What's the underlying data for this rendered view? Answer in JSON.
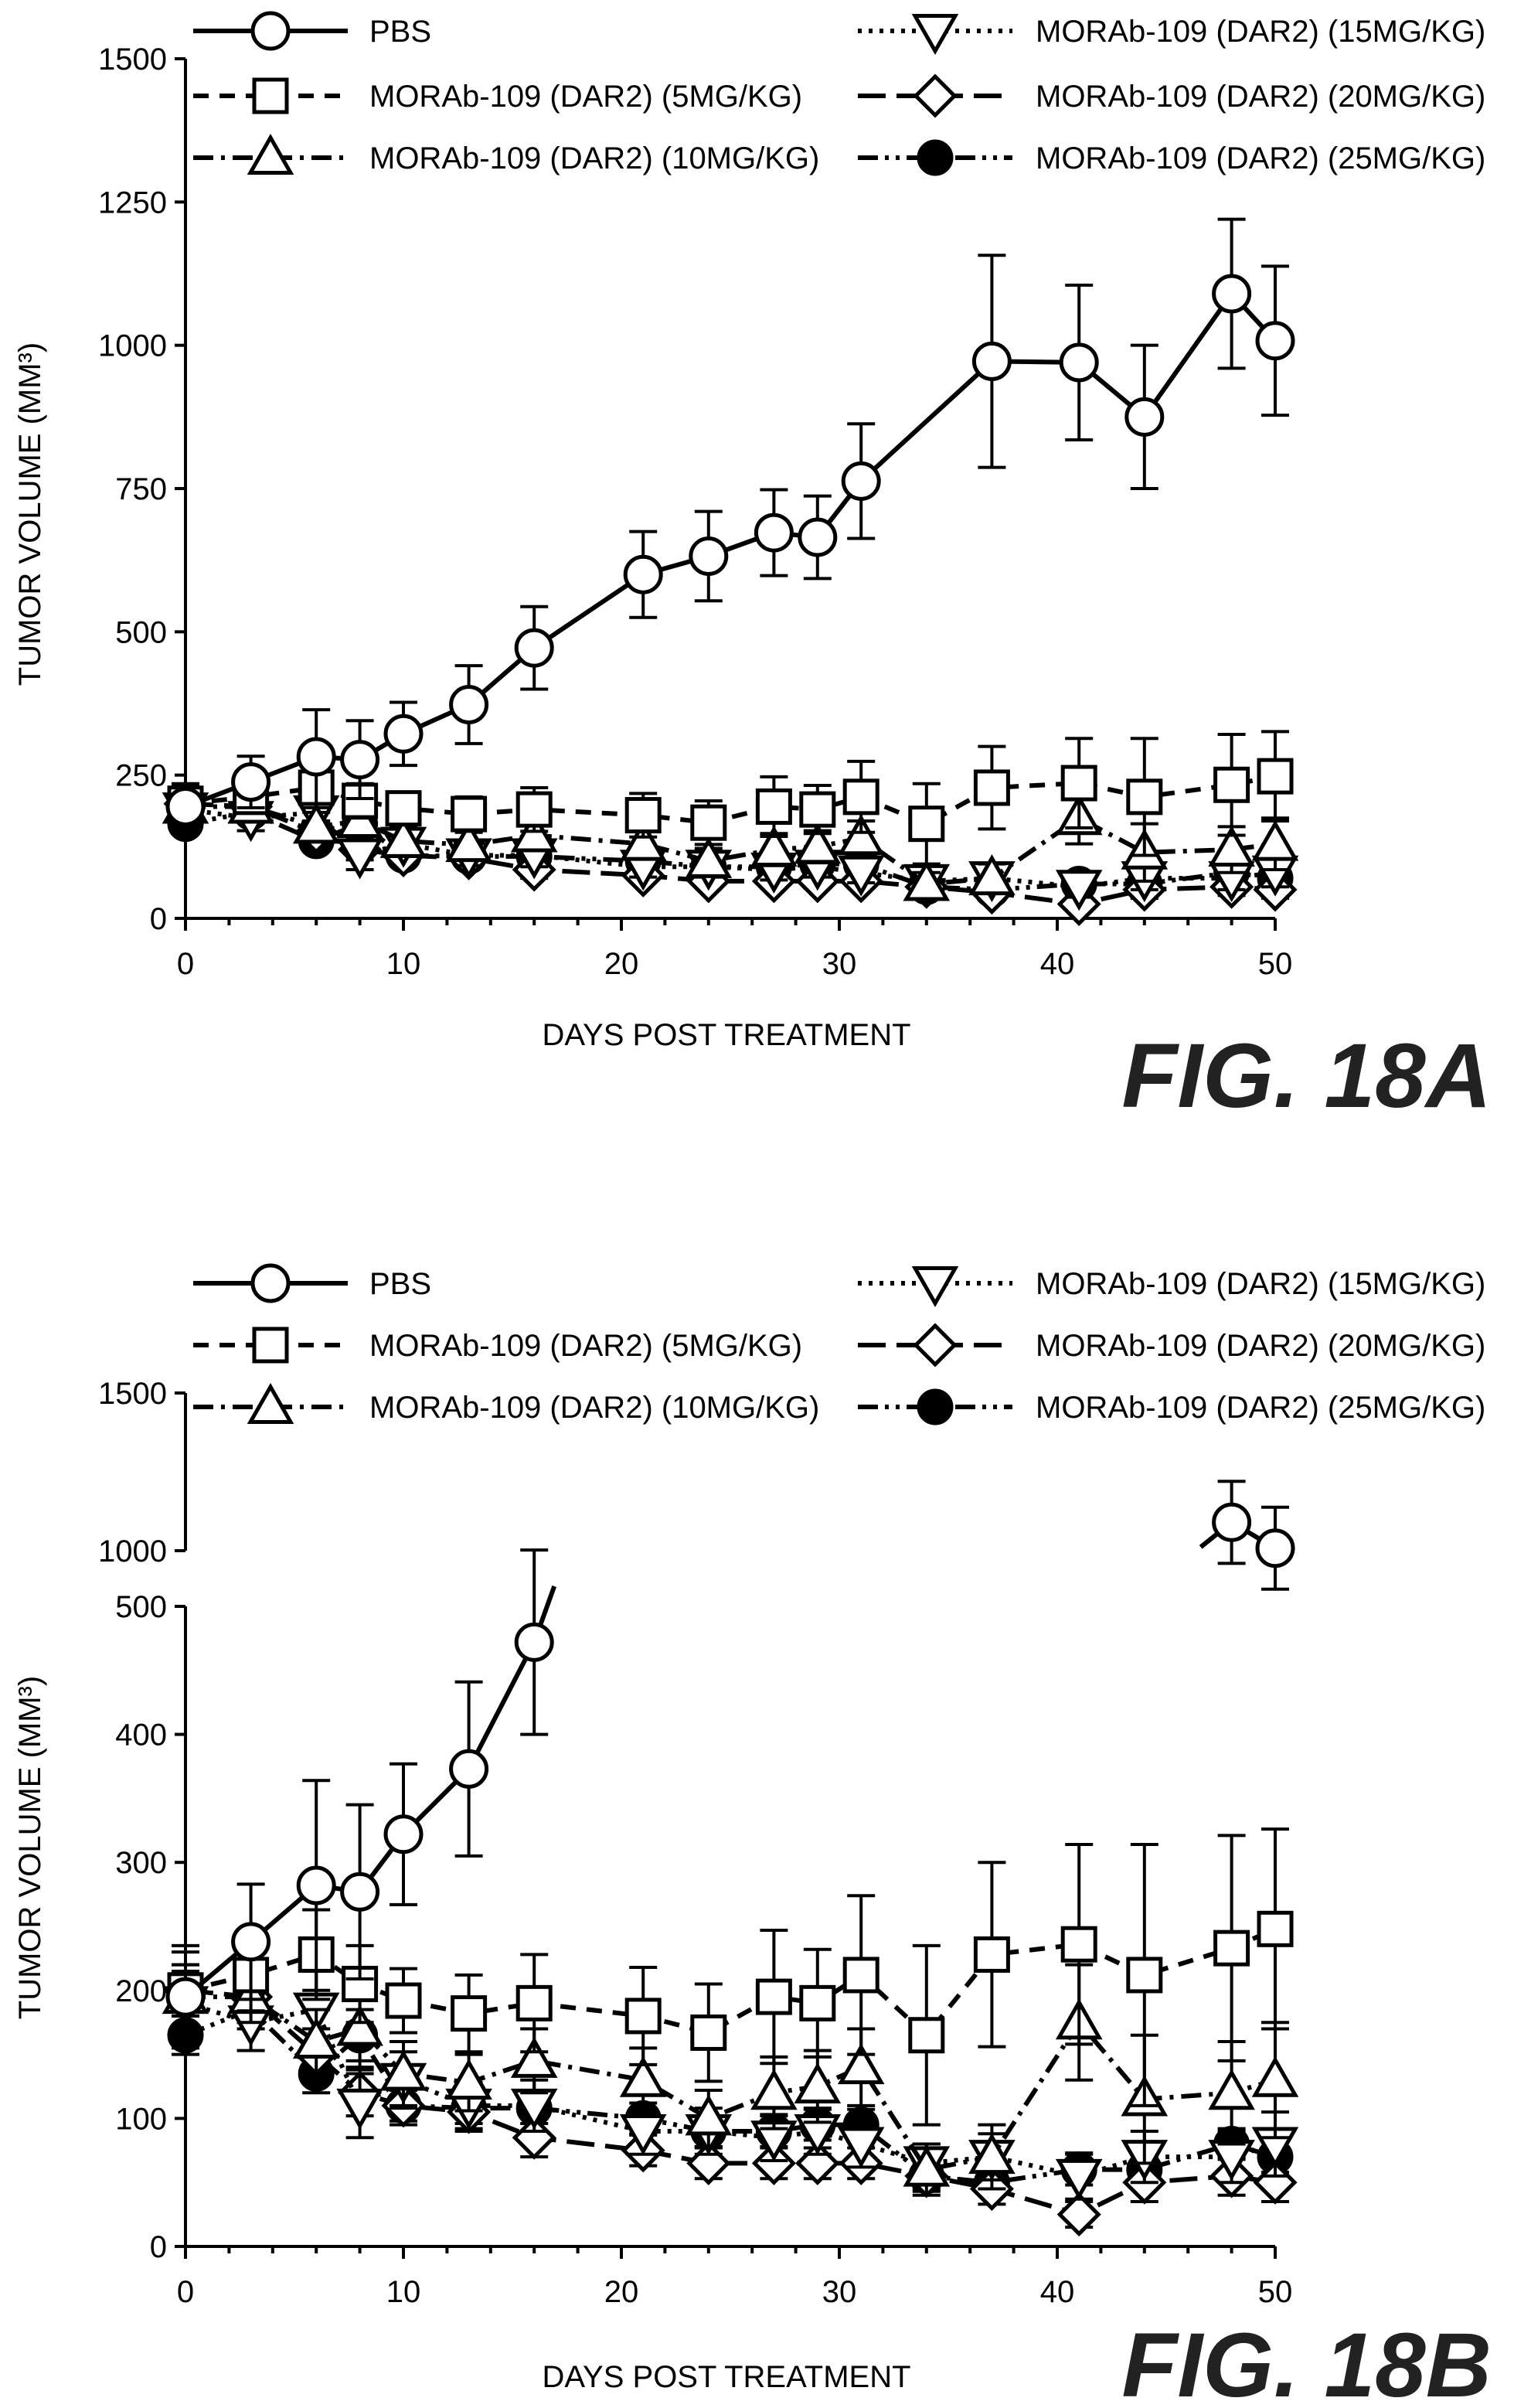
{
  "chart_data": [
    {
      "type": "line",
      "figure_label": "FIG. 18A",
      "xlabel": "DAYS POST TREATMENT",
      "ylabel": "TUMOR VOLUME (MM³)",
      "xlim": [
        0,
        50
      ],
      "xticks": [
        "0",
        "10",
        "20",
        "30",
        "40",
        "50"
      ],
      "ylim": [
        0,
        1500
      ],
      "yticks": [
        "0",
        "250",
        "500",
        "750",
        "1000",
        "1250",
        "1500"
      ],
      "error_bars": true,
      "legend_position": "top",
      "series": [
        {
          "name": "PBS",
          "marker": "circle-open",
          "line": "solid",
          "x": [
            0,
            3,
            6,
            8,
            10,
            13,
            16,
            21,
            24,
            27,
            29,
            31,
            37,
            41,
            44,
            48,
            50
          ],
          "y": [
            195,
            238,
            282,
            277,
            322,
            373,
            472,
            600,
            632,
            673,
            665,
            763,
            972,
            970,
            875,
            1090,
            1008
          ],
          "err": [
            40,
            45,
            82,
            68,
            55,
            68,
            72,
            75,
            78,
            75,
            72,
            100,
            185,
            135,
            125,
            130,
            130
          ]
        },
        {
          "name": "MORAb-109 (DAR2) (5MG/KG)",
          "marker": "square-open",
          "line": "dashed",
          "x": [
            0,
            3,
            6,
            8,
            10,
            13,
            16,
            21,
            24,
            27,
            29,
            31,
            34,
            37,
            41,
            44,
            48,
            50
          ],
          "y": [
            200,
            212,
            228,
            205,
            192,
            182,
            190,
            180,
            167,
            195,
            190,
            212,
            165,
            228,
            236,
            212,
            233,
            248
          ],
          "err": [
            30,
            28,
            35,
            30,
            25,
            30,
            38,
            38,
            38,
            52,
            42,
            62,
            70,
            72,
            78,
            102,
            88,
            78
          ]
        },
        {
          "name": "MORAb-109 (DAR2) (10MG/KG)",
          "marker": "triangle-up-open",
          "line": "dashdot",
          "x": [
            0,
            3,
            6,
            8,
            10,
            13,
            16,
            21,
            24,
            27,
            29,
            31,
            34,
            37,
            41,
            44,
            48,
            50
          ],
          "y": [
            195,
            195,
            160,
            170,
            135,
            128,
            145,
            130,
            100,
            120,
            125,
            140,
            60,
            70,
            175,
            115,
            120,
            130
          ],
          "err": [
            25,
            20,
            25,
            30,
            25,
            22,
            25,
            25,
            22,
            28,
            28,
            30,
            20,
            25,
            45,
            50,
            40,
            45
          ]
        },
        {
          "name": "MORAb-109 (DAR2) (15MG/KG)",
          "marker": "triangle-down-open",
          "line": "dotted",
          "x": [
            0,
            3,
            6,
            8,
            10,
            13,
            16,
            21,
            24,
            27,
            29,
            31,
            34,
            37,
            41,
            44,
            48,
            50
          ],
          "y": [
            190,
            175,
            185,
            110,
            130,
            110,
            110,
            90,
            90,
            85,
            90,
            80,
            65,
            70,
            55,
            70,
            70,
            80
          ],
          "err": [
            25,
            22,
            30,
            25,
            22,
            18,
            20,
            18,
            18,
            18,
            18,
            18,
            15,
            18,
            18,
            20,
            20,
            25
          ]
        },
        {
          "name": "MORAb-109 (DAR2) (20MG/KG)",
          "marker": "diamond-open",
          "line": "longdash",
          "x": [
            0,
            3,
            6,
            8,
            10,
            13,
            16,
            21,
            24,
            27,
            29,
            31,
            34,
            37,
            41,
            44,
            48,
            50
          ],
          "y": [
            200,
            195,
            150,
            120,
            110,
            105,
            85,
            75,
            65,
            65,
            65,
            65,
            55,
            45,
            25,
            50,
            55,
            50
          ],
          "err": [
            20,
            20,
            20,
            18,
            15,
            15,
            15,
            12,
            12,
            12,
            12,
            12,
            12,
            12,
            10,
            15,
            15,
            15
          ]
        },
        {
          "name": "MORAb-109 (DAR2) (25MG/KG)",
          "marker": "circle-filled",
          "line": "dashdotdot",
          "x": [
            0,
            3,
            6,
            8,
            10,
            13,
            16,
            21,
            24,
            27,
            29,
            31,
            34,
            37,
            41,
            44,
            48,
            50
          ],
          "y": [
            165,
            185,
            135,
            165,
            110,
            108,
            108,
            100,
            90,
            90,
            95,
            95,
            55,
            50,
            60,
            60,
            80,
            70
          ],
          "err": [
            15,
            15,
            15,
            20,
            12,
            12,
            12,
            12,
            12,
            12,
            12,
            12,
            10,
            10,
            12,
            12,
            12,
            12
          ]
        }
      ]
    },
    {
      "type": "line",
      "figure_label": "FIG. 18B",
      "xlabel": "DAYS POST TREATMENT",
      "ylabel": "TUMOR VOLUME (MM³)",
      "xlim": [
        0,
        50
      ],
      "xticks": [
        "0",
        "10",
        "20",
        "30",
        "40",
        "50"
      ],
      "ylim_lower": [
        0,
        500
      ],
      "yticks_lower": [
        "0",
        "100",
        "200",
        "300",
        "400",
        "500"
      ],
      "ylim_upper": [
        1000,
        1500
      ],
      "yticks_upper": [
        "1000",
        "1500"
      ],
      "broken_y_axis": true,
      "error_bars": true,
      "legend_position": "top",
      "series": [
        {
          "name": "PBS",
          "marker": "circle-open",
          "line": "solid",
          "x": [
            0,
            3,
            6,
            8,
            10,
            13,
            16,
            48,
            50
          ],
          "y": [
            195,
            238,
            282,
            277,
            322,
            373,
            472,
            1090,
            1008
          ],
          "err": [
            40,
            45,
            82,
            68,
            55,
            68,
            72,
            130,
            130
          ]
        },
        {
          "name": "MORAb-109 (DAR2) (5MG/KG)",
          "marker": "square-open",
          "line": "dashed",
          "x": [
            0,
            3,
            6,
            8,
            10,
            13,
            16,
            21,
            24,
            27,
            29,
            31,
            34,
            37,
            41,
            44,
            48,
            50
          ],
          "y": [
            200,
            212,
            228,
            205,
            192,
            182,
            190,
            180,
            167,
            195,
            190,
            212,
            165,
            228,
            236,
            212,
            233,
            248
          ],
          "err": [
            30,
            28,
            35,
            30,
            25,
            30,
            38,
            38,
            38,
            52,
            42,
            62,
            70,
            72,
            78,
            102,
            88,
            78
          ]
        },
        {
          "name": "MORAb-109 (DAR2) (10MG/KG)",
          "marker": "triangle-up-open",
          "line": "dashdot",
          "x": [
            0,
            3,
            6,
            8,
            10,
            13,
            16,
            21,
            24,
            27,
            29,
            31,
            34,
            37,
            41,
            44,
            48,
            50
          ],
          "y": [
            195,
            195,
            160,
            170,
            135,
            128,
            145,
            130,
            100,
            120,
            125,
            140,
            60,
            70,
            175,
            115,
            120,
            130
          ],
          "err": [
            25,
            20,
            25,
            30,
            25,
            22,
            25,
            25,
            22,
            28,
            28,
            30,
            20,
            25,
            45,
            50,
            40,
            45
          ]
        },
        {
          "name": "MORAb-109 (DAR2) (15MG/KG)",
          "marker": "triangle-down-open",
          "line": "dotted",
          "x": [
            0,
            3,
            6,
            8,
            10,
            13,
            16,
            21,
            24,
            27,
            29,
            31,
            34,
            37,
            41,
            44,
            48,
            50
          ],
          "y": [
            190,
            175,
            185,
            110,
            130,
            110,
            110,
            90,
            90,
            85,
            90,
            80,
            65,
            70,
            55,
            70,
            70,
            80
          ],
          "err": [
            25,
            22,
            30,
            25,
            22,
            18,
            20,
            18,
            18,
            18,
            18,
            18,
            15,
            18,
            18,
            20,
            20,
            25
          ]
        },
        {
          "name": "MORAb-109 (DAR2) (20MG/KG)",
          "marker": "diamond-open",
          "line": "longdash",
          "x": [
            0,
            3,
            6,
            8,
            10,
            13,
            16,
            21,
            24,
            27,
            29,
            31,
            34,
            37,
            41,
            44,
            48,
            50
          ],
          "y": [
            200,
            195,
            150,
            120,
            110,
            105,
            85,
            75,
            65,
            65,
            65,
            65,
            55,
            45,
            25,
            50,
            55,
            50
          ],
          "err": [
            20,
            20,
            20,
            18,
            15,
            15,
            15,
            12,
            12,
            12,
            12,
            12,
            12,
            12,
            10,
            15,
            15,
            15
          ]
        },
        {
          "name": "MORAb-109 (DAR2) (25MG/KG)",
          "marker": "circle-filled",
          "line": "dashdotdot",
          "x": [
            0,
            3,
            6,
            8,
            10,
            13,
            16,
            21,
            24,
            27,
            29,
            31,
            34,
            37,
            41,
            44,
            48,
            50
          ],
          "y": [
            165,
            185,
            135,
            165,
            110,
            108,
            108,
            100,
            90,
            90,
            95,
            95,
            55,
            50,
            60,
            60,
            80,
            70
          ],
          "err": [
            15,
            15,
            15,
            20,
            12,
            12,
            12,
            12,
            12,
            12,
            12,
            12,
            10,
            10,
            12,
            12,
            12,
            12
          ]
        }
      ]
    }
  ]
}
